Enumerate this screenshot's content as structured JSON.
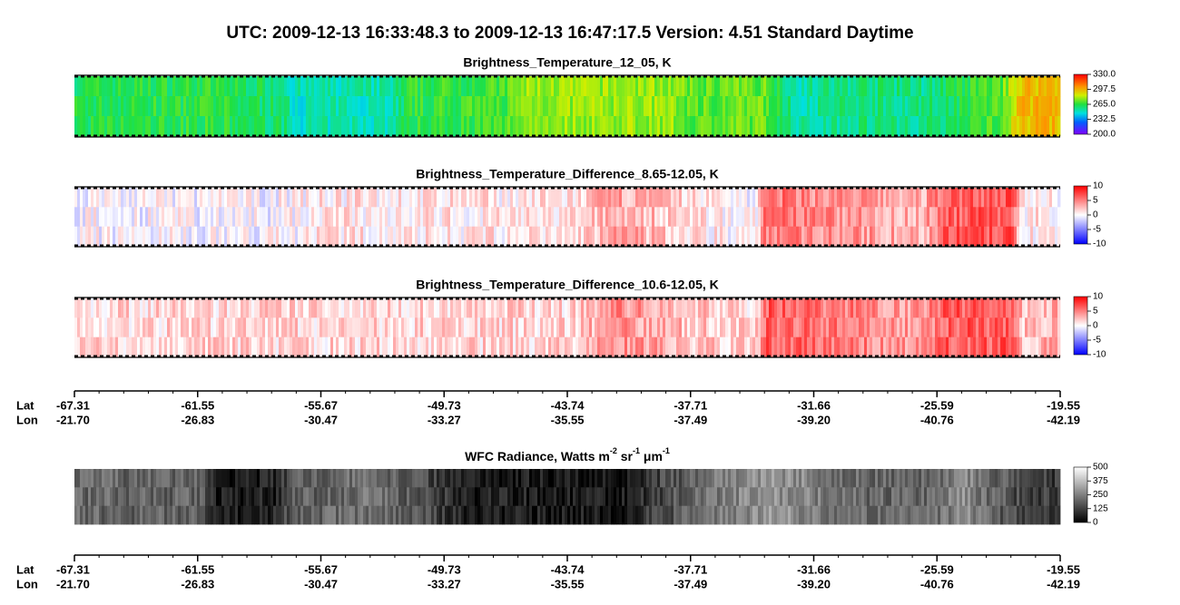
{
  "title": "UTC:  2009-12-13   16:33:48.3  to  2009-12-13   16:47:17.5    Version: 4.51  Standard Daytime",
  "panels": [
    {
      "title": "Brightness_Temperature_12_05, K",
      "colorbar": [
        {
          "value": 330,
          "label": "330.0"
        },
        {
          "value": 297.5,
          "label": "297.5"
        },
        {
          "value": 265,
          "label": "265.0"
        },
        {
          "value": 232.5,
          "label": "232.5"
        },
        {
          "value": 200,
          "label": "200.0"
        }
      ]
    },
    {
      "title": "Brightness_Temperature_Difference_8.65-12.05, K",
      "colorbar": [
        10,
        5,
        0,
        -5,
        -10
      ]
    },
    {
      "title": "Brightness_Temperature_Difference_10.6-12.05, K",
      "colorbar": [
        10,
        5,
        0,
        -5,
        -10
      ]
    },
    {
      "title_parts": [
        "WFC Radiance, Watts m",
        "-2",
        " sr",
        "-1",
        " μm",
        "-1"
      ],
      "colorbar": [
        500,
        375,
        250,
        125,
        0
      ]
    }
  ],
  "axes": [
    {
      "lat_label": "Lat",
      "lon_label": "Lon",
      "lat": [
        -67.31,
        -61.55,
        -55.67,
        -49.73,
        -43.74,
        -37.71,
        -31.66,
        -25.59,
        -19.55
      ],
      "lon": [
        {
          "value": -21.7,
          "label": "-21.70"
        },
        -26.83,
        -30.47,
        -33.27,
        -35.55,
        -37.49,
        {
          "value": -39.2,
          "label": "-39.20"
        },
        -40.76,
        -42.19
      ]
    },
    {
      "lat_label": "Lat",
      "lon_label": "Lon",
      "lat": [
        -67.31,
        -61.55,
        -55.67,
        -49.73,
        -43.74,
        -37.71,
        -31.66,
        -25.59,
        -19.55
      ],
      "lon": [
        {
          "value": -21.7,
          "label": "-21.70"
        },
        -26.83,
        -30.47,
        -33.27,
        -35.55,
        -37.49,
        {
          "value": -39.2,
          "label": "-39.20"
        },
        -40.76,
        -42.19
      ]
    }
  ]
}
